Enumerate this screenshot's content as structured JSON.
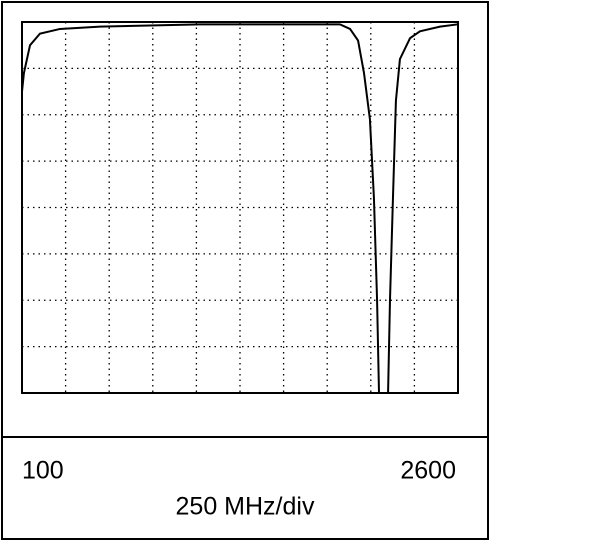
{
  "chart_data": {
    "type": "line",
    "xlabel": "250 MHz/div",
    "x": [
      100,
      111,
      146,
      203,
      318,
      547,
      1121,
      1923,
      1981,
      2027,
      2061,
      2095,
      2118,
      2136,
      2147,
      2199,
      2210,
      2227,
      2244,
      2267,
      2325,
      2382,
      2497,
      2600
    ],
    "series": [
      {
        "color": "#000000",
        "values": [
          6.5,
          6.9,
          7.5,
          7.75,
          7.85,
          7.9,
          7.95,
          7.95,
          7.85,
          7.6,
          6.9,
          5.9,
          4.2,
          2.0,
          0,
          0,
          2.0,
          4.2,
          6.3,
          7.2,
          7.65,
          7.8,
          7.9,
          7.95
        ]
      }
    ],
    "xlim": [
      100,
      2600
    ],
    "ylim": [
      0,
      8
    ],
    "xticks": [
      100,
      2600
    ],
    "xgrid": [
      350,
      600,
      850,
      1100,
      1350,
      1600,
      1850,
      2100,
      2350
    ],
    "ygrid": [
      1,
      2,
      3,
      4,
      5,
      6,
      7
    ],
    "grid": true
  }
}
